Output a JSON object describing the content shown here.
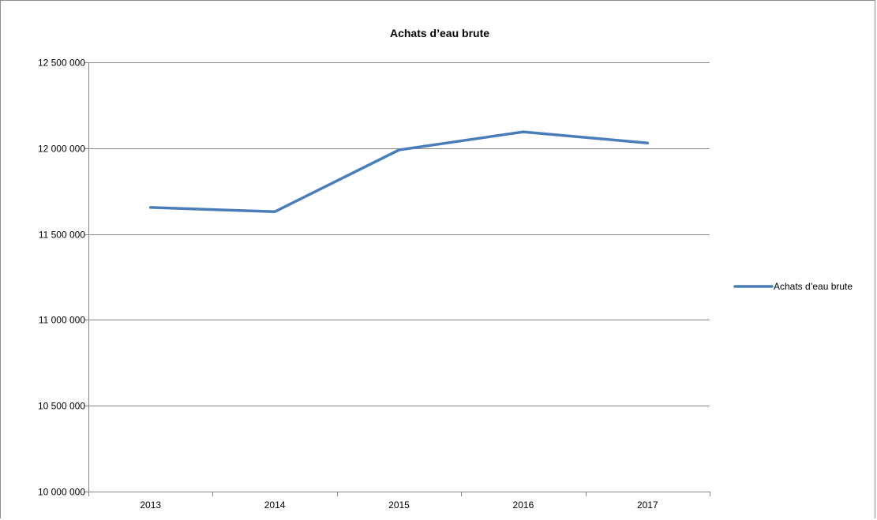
{
  "chart_data": {
    "type": "line",
    "title": "Achats d’eau brute",
    "xlabel": "",
    "ylabel": "",
    "categories": [
      "2013",
      "2014",
      "2015",
      "2016",
      "2017"
    ],
    "series": [
      {
        "name": "Achats d’eau brute",
        "values": [
          11655000,
          11630000,
          11990000,
          12095000,
          12030000
        ],
        "color": "#4a7ebb"
      }
    ],
    "ylim": [
      10000000,
      12500000
    ],
    "yticks": [
      10000000,
      10500000,
      11000000,
      11500000,
      12000000,
      12500000
    ],
    "ytick_labels": [
      "10 000 000",
      "10 500 000",
      "11 000 000",
      "11 500 000",
      "12 000 000",
      "12 500 000"
    ],
    "grid": true,
    "legend_position": "right"
  }
}
